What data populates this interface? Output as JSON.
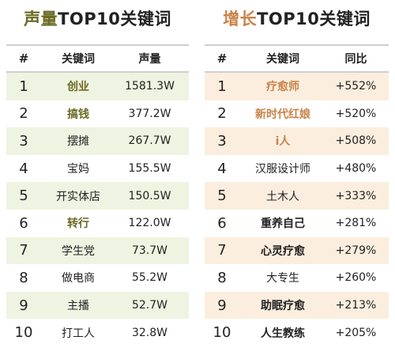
{
  "volume_panel": {
    "title_highlight": "声量",
    "title_rest": "TOP10关键词",
    "headers": [
      "#",
      "关键词",
      "声量"
    ],
    "rows": [
      {
        "rank": "1",
        "keyword": "创业",
        "value": "1581.3W"
      },
      {
        "rank": "2",
        "keyword": "搞钱",
        "value": "377.2W"
      },
      {
        "rank": "3",
        "keyword": "摆摊",
        "value": "267.7W"
      },
      {
        "rank": "4",
        "keyword": "宝妈",
        "value": "155.5W"
      },
      {
        "rank": "5",
        "keyword": "开实体店",
        "value": "150.5W"
      },
      {
        "rank": "6",
        "keyword": "转行",
        "value": "122.0W"
      },
      {
        "rank": "7",
        "keyword": "学生党",
        "value": "73.7W"
      },
      {
        "rank": "8",
        "keyword": "做电商",
        "value": "55.2W"
      },
      {
        "rank": "9",
        "keyword": "主播",
        "value": "52.7W"
      },
      {
        "rank": "10",
        "keyword": "打工人",
        "value": "32.8W"
      }
    ]
  },
  "growth_panel": {
    "title_highlight": "增长",
    "title_rest": "TOP10关键词",
    "headers": [
      "#",
      "关键词",
      "同比"
    ],
    "rows": [
      {
        "rank": "1",
        "keyword": "疗愈师",
        "value": "+552%"
      },
      {
        "rank": "2",
        "keyword": "新时代红娘",
        "value": "+520%"
      },
      {
        "rank": "3",
        "keyword": "i人",
        "value": "+508%"
      },
      {
        "rank": "4",
        "keyword": "汉服设计师",
        "value": "+480%"
      },
      {
        "rank": "5",
        "keyword": "土木人",
        "value": "+333%"
      },
      {
        "rank": "6",
        "keyword": "重养自己",
        "value": "+281%"
      },
      {
        "rank": "7",
        "keyword": "心灵疗愈",
        "value": "+279%"
      },
      {
        "rank": "8",
        "keyword": "大专生",
        "value": "+260%"
      },
      {
        "rank": "9",
        "keyword": "助眠疗愈",
        "value": "+213%"
      },
      {
        "rank": "10",
        "keyword": "人生教练",
        "value": "+205%"
      }
    ]
  },
  "colors": {
    "volume_accent": "#6b6a23",
    "growth_accent": "#c9834a",
    "volume_shade": "#eff3e1",
    "growth_shade": "#fbeede",
    "rule": "#cfcfcf"
  }
}
